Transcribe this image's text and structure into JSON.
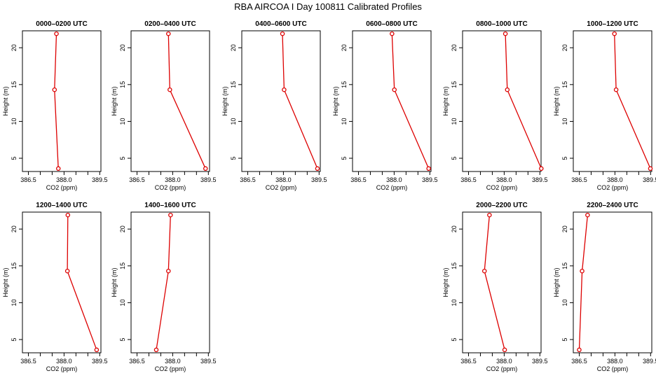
{
  "title": "RBA AIRCOA I  Day 100811  Calibrated Profiles",
  "colors": {
    "line": "#dd0000",
    "axis": "#000000"
  },
  "chart_data": {
    "type": "line",
    "xlabel": "CO2 (ppm)",
    "ylabel": "Height (m)",
    "xlim": [
      386.25,
      389.55
    ],
    "ylim": [
      3.2,
      22.3
    ],
    "xticks": [
      "386.5",
      "388.0",
      "389.5"
    ],
    "xticks_minor": [
      "387.0",
      "387.5",
      "388.5",
      "389.0"
    ],
    "xtick_values": [
      386.5,
      387.0,
      387.5,
      388.0,
      388.5,
      389.0,
      389.5
    ],
    "yticks": [
      "5",
      "10",
      "15",
      "20"
    ],
    "ytick_values": [
      5,
      10,
      15,
      20
    ],
    "panels": [
      {
        "title": "0000–0200 UTC",
        "points": [
          {
            "x": 387.76,
            "y": 3.6
          },
          {
            "x": 387.6,
            "y": 14.3
          },
          {
            "x": 387.68,
            "y": 21.9
          }
        ]
      },
      {
        "title": "0200–0400 UTC",
        "points": [
          {
            "x": 389.38,
            "y": 3.6
          },
          {
            "x": 387.88,
            "y": 14.3
          },
          {
            "x": 387.82,
            "y": 21.9
          }
        ]
      },
      {
        "title": "0400–0600 UTC",
        "points": [
          {
            "x": 389.43,
            "y": 3.6
          },
          {
            "x": 388.03,
            "y": 14.3
          },
          {
            "x": 387.96,
            "y": 21.9
          }
        ]
      },
      {
        "title": "0600–0800 UTC",
        "points": [
          {
            "x": 389.45,
            "y": 3.6
          },
          {
            "x": 388.01,
            "y": 14.3
          },
          {
            "x": 387.91,
            "y": 21.9
          }
        ]
      },
      {
        "title": "0800–1000 UTC",
        "points": [
          {
            "x": 389.56,
            "y": 3.6
          },
          {
            "x": 388.13,
            "y": 14.3
          },
          {
            "x": 388.05,
            "y": 21.9
          }
        ]
      },
      {
        "title": "1000–1200 UTC",
        "points": [
          {
            "x": 389.49,
            "y": 3.6
          },
          {
            "x": 388.05,
            "y": 14.3
          },
          {
            "x": 387.98,
            "y": 21.9
          }
        ]
      },
      {
        "title": "1200–1400 UTC",
        "points": [
          {
            "x": 389.37,
            "y": 3.6
          },
          {
            "x": 388.14,
            "y": 14.3
          },
          {
            "x": 388.16,
            "y": 21.9
          }
        ]
      },
      {
        "title": "1400–1600 UTC",
        "points": [
          {
            "x": 387.31,
            "y": 3.6
          },
          {
            "x": 387.82,
            "y": 14.3
          },
          {
            "x": 387.91,
            "y": 21.9
          }
        ]
      },
      {
        "title": "2000–2200 UTC",
        "points": [
          {
            "x": 388.02,
            "y": 3.6
          },
          {
            "x": 387.17,
            "y": 14.3
          },
          {
            "x": 387.38,
            "y": 21.9
          }
        ]
      },
      {
        "title": "2200–2400 UTC",
        "points": [
          {
            "x": 386.5,
            "y": 3.6
          },
          {
            "x": 386.62,
            "y": 14.3
          },
          {
            "x": 386.85,
            "y": 21.9
          }
        ]
      }
    ]
  }
}
